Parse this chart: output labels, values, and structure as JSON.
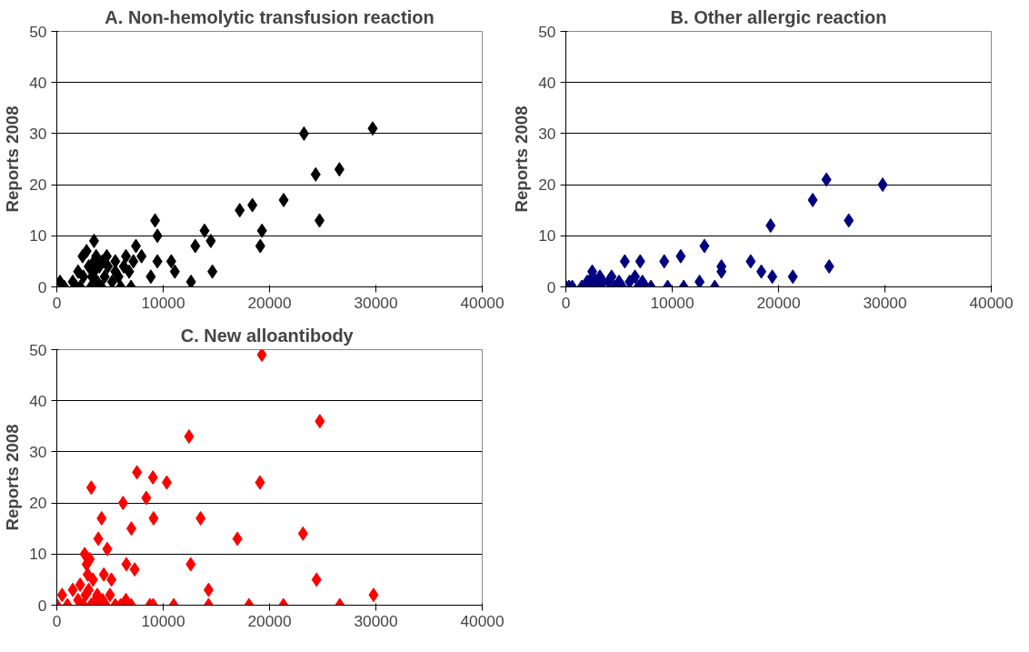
{
  "chart_data": [
    {
      "type": "scatter",
      "title": "A. Non-hemolytic transfusion reaction",
      "ylabel": "Reports 2008",
      "color": "#000000",
      "marker": "diamond",
      "grid": "y",
      "xlim": [
        0,
        40000
      ],
      "ylim": [
        0,
        50
      ],
      "xticks": [
        0,
        10000,
        20000,
        30000,
        40000
      ],
      "yticks": [
        0,
        10,
        20,
        30,
        40,
        50
      ],
      "x": [
        23240,
        29700,
        24340,
        26570,
        24700,
        21330,
        18390,
        17200,
        19290,
        19130,
        13890,
        14480,
        13020,
        14630,
        12620,
        9240,
        9460,
        9460,
        8840,
        10760,
        11100,
        3500,
        7440,
        7970,
        6980,
        2420,
        300,
        700,
        1500,
        2000,
        2200,
        2500,
        3000,
        3200,
        3300,
        3500,
        3700,
        3800,
        4000,
        4200,
        4300,
        4500,
        4700,
        5200,
        5500,
        5800,
        6000,
        6300,
        6500,
        6800,
        7200,
        1800,
        2800,
        3500,
        4800,
        5500
      ],
      "values": [
        30,
        31,
        22,
        23,
        13,
        17,
        16,
        15,
        11,
        8,
        11,
        9,
        8,
        3,
        1,
        13,
        10,
        5,
        2,
        5,
        3,
        9,
        8,
        6,
        0,
        6,
        1,
        0,
        1,
        3,
        0,
        2,
        4,
        0,
        2,
        3,
        6,
        1,
        4,
        0,
        5,
        2,
        6,
        1,
        5,
        2,
        0,
        4,
        6,
        3,
        5,
        0,
        7,
        5,
        4,
        3
      ]
    },
    {
      "type": "scatter",
      "title": "B. Other allergic reaction",
      "ylabel": "Reports 2008",
      "color": "#000080",
      "marker": "diamond",
      "grid": "y",
      "xlim": [
        0,
        40000
      ],
      "ylim": [
        0,
        50
      ],
      "xticks": [
        0,
        10000,
        20000,
        30000,
        40000
      ],
      "yticks": [
        0,
        10,
        20,
        30,
        40,
        50
      ],
      "x": [
        24500,
        29790,
        23210,
        26600,
        19250,
        13030,
        24760,
        10800,
        5540,
        6990,
        9250,
        14630,
        14630,
        17380,
        18380,
        19410,
        21340,
        12570,
        14000,
        11080,
        9570,
        2480,
        0,
        300,
        600,
        1500,
        2000,
        2200,
        2500,
        2800,
        3000,
        3200,
        3500,
        4000,
        4300,
        4600,
        5000,
        5300,
        6000,
        6500,
        6800,
        7200,
        7500,
        8000
      ],
      "values": [
        21,
        20,
        17,
        13,
        12,
        8,
        4,
        6,
        5,
        5,
        5,
        4,
        3,
        5,
        3,
        2,
        2,
        1,
        0,
        0,
        0,
        3,
        0,
        0,
        0,
        0,
        1,
        0,
        2,
        1,
        0,
        2,
        1,
        1,
        2,
        0,
        1,
        0,
        1,
        2,
        0,
        1,
        0,
        0
      ]
    },
    {
      "type": "scatter",
      "title": "C.  New alloantibody",
      "ylabel": "Reports 2008",
      "color": "#ff0000",
      "marker": "diamond",
      "grid": "y",
      "xlim": [
        0,
        40000
      ],
      "ylim": [
        0,
        50
      ],
      "xticks": [
        0,
        10000,
        20000,
        30000,
        40000
      ],
      "yticks": [
        0,
        10,
        20,
        30,
        40,
        50
      ],
      "x": [
        19280,
        12430,
        19100,
        3240,
        7540,
        9040,
        10340,
        8410,
        6230,
        4210,
        9100,
        13520,
        7010,
        16980,
        3900,
        4740,
        2620,
        12590,
        6540,
        7320,
        4420,
        5140,
        14270,
        8750,
        9060,
        10990,
        14270,
        18070,
        24730,
        23150,
        24420,
        21310,
        26610,
        29780,
        0,
        500,
        1000,
        1500,
        2000,
        2200,
        2500,
        2700,
        2900,
        3000,
        3200,
        3400,
        3600,
        3800,
        4000,
        4300,
        4600,
        5000,
        5500,
        6000,
        6500,
        7000,
        2800,
        3100
      ],
      "values": [
        49,
        33,
        24,
        23,
        26,
        25,
        24,
        21,
        20,
        17,
        17,
        17,
        15,
        13,
        13,
        11,
        10,
        8,
        8,
        7,
        6,
        5,
        3,
        0,
        0,
        0,
        0,
        0,
        36,
        14,
        5,
        0,
        0,
        2,
        0,
        2,
        0,
        3,
        1,
        4,
        0,
        2,
        6,
        3,
        0,
        5,
        1,
        2,
        0,
        1,
        0,
        2,
        0,
        0,
        1,
        0,
        8,
        9
      ]
    }
  ]
}
